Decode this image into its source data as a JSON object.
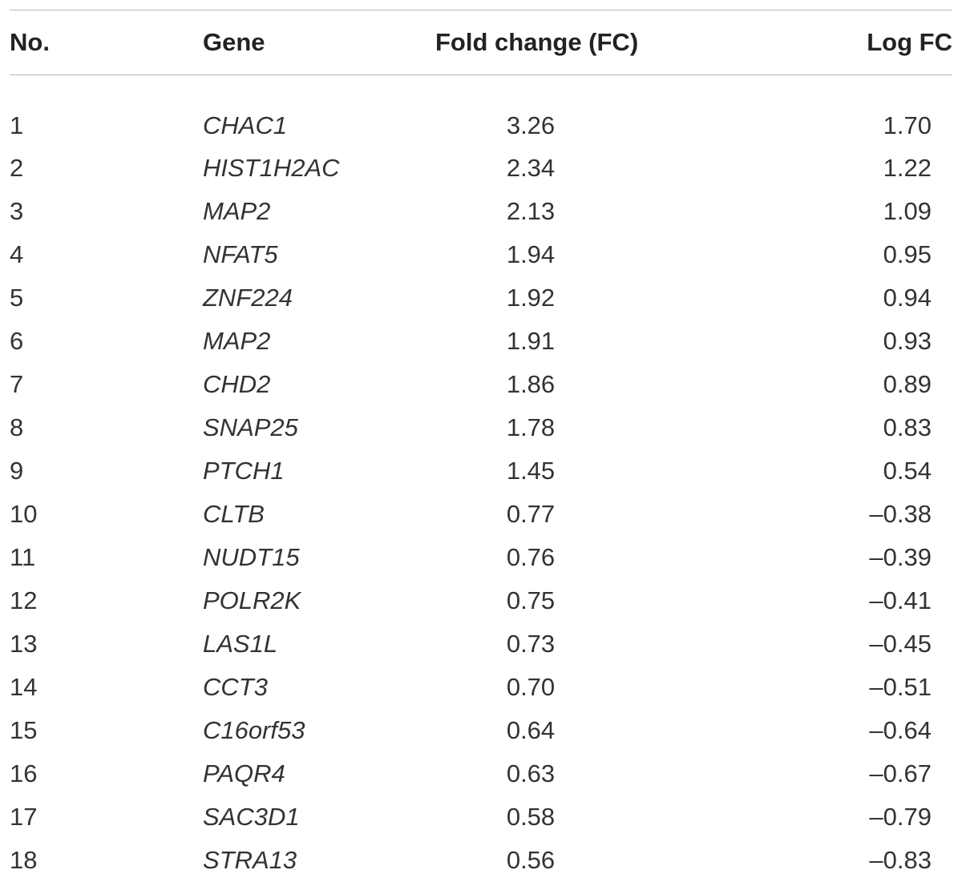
{
  "table": {
    "headers": {
      "no": "No.",
      "gene": "Gene",
      "fold_change": "Fold change (FC)",
      "log_fc": "Log FC"
    },
    "rows": [
      {
        "no": "1",
        "gene": "CHAC1",
        "fc": "3.26",
        "log_fc": "1.70"
      },
      {
        "no": "2",
        "gene": "HIST1H2AC",
        "fc": "2.34",
        "log_fc": "1.22"
      },
      {
        "no": "3",
        "gene": "MAP2",
        "fc": "2.13",
        "log_fc": "1.09"
      },
      {
        "no": "4",
        "gene": "NFAT5",
        "fc": "1.94",
        "log_fc": "0.95"
      },
      {
        "no": "5",
        "gene": "ZNF224",
        "fc": "1.92",
        "log_fc": "0.94"
      },
      {
        "no": "6",
        "gene": "MAP2",
        "fc": "1.91",
        "log_fc": "0.93"
      },
      {
        "no": "7",
        "gene": "CHD2",
        "fc": "1.86",
        "log_fc": "0.89"
      },
      {
        "no": "8",
        "gene": "SNAP25",
        "fc": "1.78",
        "log_fc": "0.83"
      },
      {
        "no": "9",
        "gene": "PTCH1",
        "fc": "1.45",
        "log_fc": "0.54"
      },
      {
        "no": "10",
        "gene": "CLTB",
        "fc": "0.77",
        "log_fc": "–0.38"
      },
      {
        "no": "11",
        "gene": "NUDT15",
        "fc": "0.76",
        "log_fc": "–0.39"
      },
      {
        "no": "12",
        "gene": "POLR2K",
        "fc": "0.75",
        "log_fc": "–0.41"
      },
      {
        "no": "13",
        "gene": "LAS1L",
        "fc": "0.73",
        "log_fc": "–0.45"
      },
      {
        "no": "14",
        "gene": "CCT3",
        "fc": "0.70",
        "log_fc": "–0.51"
      },
      {
        "no": "15",
        "gene": "C16orf53",
        "fc": "0.64",
        "log_fc": "–0.64"
      },
      {
        "no": "16",
        "gene": "PAQR4",
        "fc": "0.63",
        "log_fc": "–0.67"
      },
      {
        "no": "17",
        "gene": "SAC3D1",
        "fc": "0.58",
        "log_fc": "–0.79"
      },
      {
        "no": "18",
        "gene": "STRA13",
        "fc": "0.56",
        "log_fc": "–0.83"
      }
    ]
  }
}
